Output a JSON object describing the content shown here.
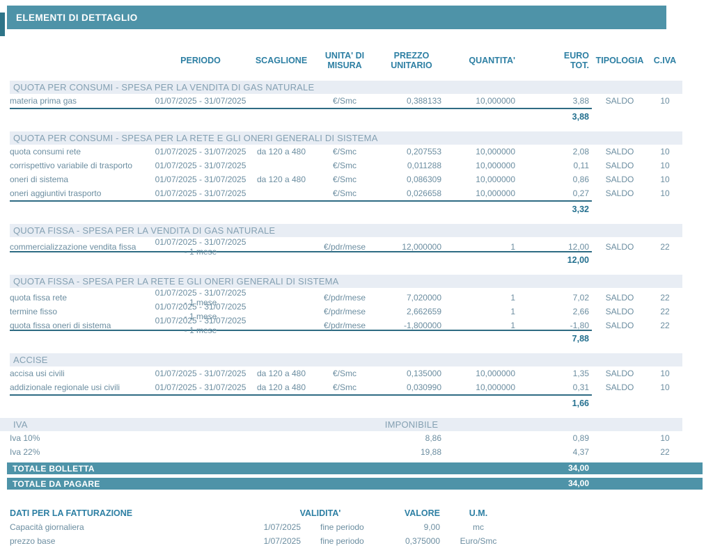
{
  "page": {
    "title": "ELEMENTI DI DETTAGLIO"
  },
  "colors": {
    "accent_teal": "#4e93a8",
    "accent_dark_teal": "#2e7488",
    "section_header_bg": "#e8edf4",
    "section_header_text": "#84a0b2",
    "column_header_text": "#2d7fa3",
    "body_text": "#6b8da0",
    "subtotal_text": "#24708f",
    "rule_line": "#2e6b83",
    "total_bar_text": "#ffffff"
  },
  "table": {
    "headers": {
      "periodo": "PERIODO",
      "scaglione": "SCAGLIONE",
      "unita": "UNITA' DI MISURA",
      "prezzo": "PREZZO UNITARIO",
      "quantita": "QUANTITA'",
      "euro": "EURO TOT.",
      "tipologia": "TIPOLOGIA",
      "civa": "C.IVA"
    },
    "sections": [
      {
        "title": "QUOTA PER CONSUMI - SPESA PER LA VENDITA DI  GAS NATURALE",
        "rows": [
          {
            "desc": "materia prima gas",
            "periodo": "01/07/2025 - 31/07/2025",
            "scaglione": "",
            "unita": "€/Smc",
            "prezzo": "0,388133",
            "quantita": "10,000000",
            "euro": "3,88",
            "tipologia": "SALDO",
            "civa": "10"
          }
        ],
        "subtotal": "3,88"
      },
      {
        "title": "QUOTA PER CONSUMI - SPESA PER LA RETE E GLI ONERI GENERALI DI SISTEMA",
        "rows": [
          {
            "desc": "quota consumi rete",
            "periodo": "01/07/2025 - 31/07/2025",
            "scaglione": "da 120 a 480",
            "unita": "€/Smc",
            "prezzo": "0,207553",
            "quantita": "10,000000",
            "euro": "2,08",
            "tipologia": "SALDO",
            "civa": "10"
          },
          {
            "desc": "corrispettivo variabile di trasporto",
            "periodo": "01/07/2025 - 31/07/2025",
            "scaglione": "",
            "unita": "€/Smc",
            "prezzo": "0,011288",
            "quantita": "10,000000",
            "euro": "0,11",
            "tipologia": "SALDO",
            "civa": "10"
          },
          {
            "desc": "oneri di sistema",
            "periodo": "01/07/2025 - 31/07/2025",
            "scaglione": "da 120 a 480",
            "unita": "€/Smc",
            "prezzo": "0,086309",
            "quantita": "10,000000",
            "euro": "0,86",
            "tipologia": "SALDO",
            "civa": "10"
          },
          {
            "desc": "oneri aggiuntivi trasporto",
            "periodo": "01/07/2025 - 31/07/2025",
            "scaglione": "",
            "unita": "€/Smc",
            "prezzo": "0,026658",
            "quantita": "10,000000",
            "euro": "0,27",
            "tipologia": "SALDO",
            "civa": "10"
          }
        ],
        "subtotal": "3,32"
      },
      {
        "title": "QUOTA FISSA - SPESA PER LA VENDITA DI  GAS NATURALE",
        "rows": [
          {
            "desc": "commercializzazione vendita fissa",
            "periodo": "01/07/2025 - 31/07/2025 - 1 mese",
            "scaglione": "",
            "unita": "€/pdr/mese",
            "prezzo": "12,000000",
            "quantita": "1",
            "euro": "12,00",
            "tipologia": "SALDO",
            "civa": "22"
          }
        ],
        "subtotal": "12,00"
      },
      {
        "title": "QUOTA FISSA - SPESA PER LA RETE E GLI ONERI GENERALI DI SISTEMA",
        "rows": [
          {
            "desc": "quota fissa rete",
            "periodo": "01/07/2025 - 31/07/2025 - 1 mese",
            "scaglione": "",
            "unita": "€/pdr/mese",
            "prezzo": "7,020000",
            "quantita": "1",
            "euro": "7,02",
            "tipologia": "SALDO",
            "civa": "22"
          },
          {
            "desc": "termine fisso",
            "periodo": "01/07/2025 - 31/07/2025 - 1 mese",
            "scaglione": "",
            "unita": "€/pdr/mese",
            "prezzo": "2,662659",
            "quantita": "1",
            "euro": "2,66",
            "tipologia": "SALDO",
            "civa": "22"
          },
          {
            "desc": "quota fissa oneri di sistema",
            "periodo": "01/07/2025 - 31/07/2025 - 1 mese",
            "scaglione": "",
            "unita": "€/pdr/mese",
            "prezzo": "-1,800000",
            "quantita": "1",
            "euro": "-1,80",
            "tipologia": "SALDO",
            "civa": "22"
          }
        ],
        "subtotal": "7,88"
      },
      {
        "title": "ACCISE",
        "rows": [
          {
            "desc": "accisa usi civili",
            "periodo": "01/07/2025 - 31/07/2025",
            "scaglione": "da 120 a 480",
            "unita": "€/Smc",
            "prezzo": "0,135000",
            "quantita": "10,000000",
            "euro": "1,35",
            "tipologia": "SALDO",
            "civa": "10"
          },
          {
            "desc": "addizionale regionale usi civili",
            "periodo": "01/07/2025 - 31/07/2025",
            "scaglione": "da 120 a 480",
            "unita": "€/Smc",
            "prezzo": "0,030990",
            "quantita": "10,000000",
            "euro": "0,31",
            "tipologia": "SALDO",
            "civa": "10"
          }
        ],
        "subtotal": "1,66"
      }
    ],
    "iva": {
      "title": "IVA",
      "imponibile_label": "IMPONIBILE",
      "rows": [
        {
          "desc": "Iva 10%",
          "imponibile": "8,86",
          "euro": "0,89",
          "civa": "10"
        },
        {
          "desc": "Iva 22%",
          "imponibile": "19,88",
          "euro": "4,37",
          "civa": "22"
        }
      ]
    },
    "totals": [
      {
        "label": "TOTALE BOLLETTA",
        "value": "34,00"
      },
      {
        "label": "TOTALE  DA PAGARE",
        "value": "34,00"
      }
    ]
  },
  "billing_info": {
    "title": "DATI PER LA FATTURAZIONE",
    "headers": {
      "validita": "VALIDITA'",
      "valore": "VALORE",
      "um": "U.M."
    },
    "rows": [
      {
        "desc": "Capacità giornaliera",
        "data": "1/07/2025",
        "validita": "fine periodo",
        "valore": "9,00",
        "um": "mc"
      },
      {
        "desc": "prezzo base",
        "data": "1/07/2025",
        "validita": "fine periodo",
        "valore": "0,375000",
        "um": "Euro/Smc"
      }
    ]
  }
}
